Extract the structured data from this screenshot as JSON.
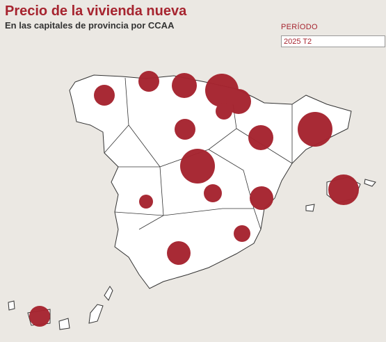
{
  "header": {
    "title": "Precio de la vivienda nueva",
    "subtitle": "En las capitales de provincia por CCAA"
  },
  "filter": {
    "label": "PERÍODO",
    "selected": "2025 T2"
  }
}
